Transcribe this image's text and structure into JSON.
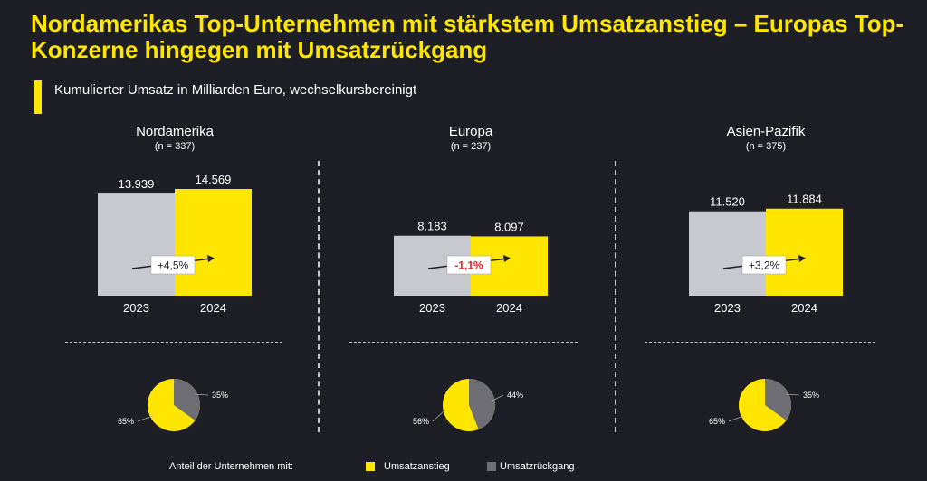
{
  "title": "Nordamerikas Top-Unternehmen mit stärkstem Umsatzanstieg – Europas Top-Konzerne hingegen mit Umsatzrückgang",
  "subtitle": "Kumulierter Umsatz in Milliarden Euro, wechselkursbereinigt",
  "colors": {
    "accent": "#ffe600",
    "bar_2023": "#c8c8d0",
    "bar_2024": "#ffe600",
    "pie_decline": "#6e6e74",
    "background": "#1e1e26",
    "negative": "#e0262b"
  },
  "chart_data": [
    {
      "type": "bar",
      "region": "Nordamerika",
      "n_label": "(n = 337)",
      "categories": [
        "2023",
        "2024"
      ],
      "values": [
        13939,
        14569
      ],
      "value_labels": [
        "13.939",
        "14.569"
      ],
      "change_label": "+4,5%",
      "change_negative": false,
      "ylim": [
        0,
        14569
      ]
    },
    {
      "type": "bar",
      "region": "Europa",
      "n_label": "(n = 237)",
      "categories": [
        "2023",
        "2024"
      ],
      "values": [
        8183,
        8097
      ],
      "value_labels": [
        "8.183",
        "8.097"
      ],
      "change_label": "-1,1%",
      "change_negative": true,
      "ylim": [
        0,
        14569
      ]
    },
    {
      "type": "bar",
      "region": "Asien-Pazifik",
      "n_label": "(n = 375)",
      "categories": [
        "2023",
        "2024"
      ],
      "values": [
        11520,
        11884
      ],
      "value_labels": [
        "11.520",
        "11.884"
      ],
      "change_label": "+3,2%",
      "change_negative": false,
      "ylim": [
        0,
        14569
      ]
    },
    {
      "type": "pie",
      "region": "Nordamerika",
      "values": [
        65,
        35
      ],
      "labels": [
        "65%",
        "35%"
      ],
      "legend": [
        "Umsatzanstieg",
        "Umsatzrückgang"
      ]
    },
    {
      "type": "pie",
      "region": "Europa",
      "values": [
        56,
        44
      ],
      "labels": [
        "56%",
        "44%"
      ],
      "legend": [
        "Umsatzanstieg",
        "Umsatzrückgang"
      ]
    },
    {
      "type": "pie",
      "region": "Asien-Pazifik",
      "values": [
        65,
        35
      ],
      "labels": [
        "65%",
        "35%"
      ],
      "legend": [
        "Umsatzanstieg",
        "Umsatzrückgang"
      ]
    }
  ],
  "legend": {
    "caption": "Anteil der Unternehmen mit:",
    "increase_label": "Umsatzanstieg",
    "decline_label": "Umsatzrückgang"
  }
}
